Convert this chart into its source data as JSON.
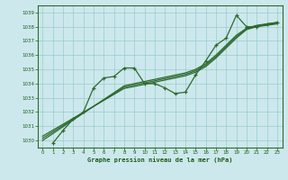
{
  "bg_color": "#cce8ec",
  "grid_color": "#99cccc",
  "line_color": "#2d6a2d",
  "marker_color": "#2d6a2d",
  "xlabel": "Graphe pression niveau de la mer (hPa)",
  "xlabel_color": "#1a5c1a",
  "ylim": [
    1029.5,
    1039.5
  ],
  "xlim": [
    -0.5,
    23.5
  ],
  "yticks": [
    1030,
    1031,
    1032,
    1033,
    1034,
    1035,
    1036,
    1037,
    1038,
    1039
  ],
  "xticks": [
    0,
    1,
    2,
    3,
    4,
    5,
    6,
    7,
    8,
    9,
    10,
    11,
    12,
    13,
    14,
    15,
    16,
    17,
    18,
    19,
    20,
    21,
    22,
    23
  ],
  "series_wavy": [
    1029.8,
    1030.7,
    1031.5,
    1032.0,
    1033.7,
    1034.4,
    1034.5,
    1035.1,
    1035.1,
    1034.0,
    1034.0,
    1033.7,
    1033.3,
    1033.4,
    1034.6,
    1035.6,
    1036.7,
    1037.2,
    1038.8,
    1038.0,
    1038.0,
    1038.2,
    1038.3
  ],
  "series_line1": [
    1030.0,
    1030.48,
    1030.96,
    1031.44,
    1031.92,
    1032.4,
    1032.88,
    1033.36,
    1033.84,
    1034.0,
    1034.15,
    1034.3,
    1034.45,
    1034.6,
    1034.75,
    1035.0,
    1035.4,
    1036.0,
    1036.7,
    1037.4,
    1037.9,
    1038.1,
    1038.2,
    1038.3
  ],
  "series_line2": [
    1030.15,
    1030.6,
    1031.05,
    1031.5,
    1031.95,
    1032.4,
    1032.85,
    1033.3,
    1033.75,
    1033.9,
    1034.05,
    1034.2,
    1034.35,
    1034.5,
    1034.65,
    1034.9,
    1035.3,
    1035.9,
    1036.6,
    1037.3,
    1037.85,
    1038.05,
    1038.15,
    1038.25
  ],
  "series_line3": [
    1030.3,
    1030.72,
    1031.14,
    1031.56,
    1031.98,
    1032.4,
    1032.82,
    1033.24,
    1033.66,
    1033.8,
    1033.95,
    1034.1,
    1034.25,
    1034.4,
    1034.55,
    1034.8,
    1035.2,
    1035.8,
    1036.5,
    1037.2,
    1037.8,
    1038.0,
    1038.1,
    1038.2
  ]
}
